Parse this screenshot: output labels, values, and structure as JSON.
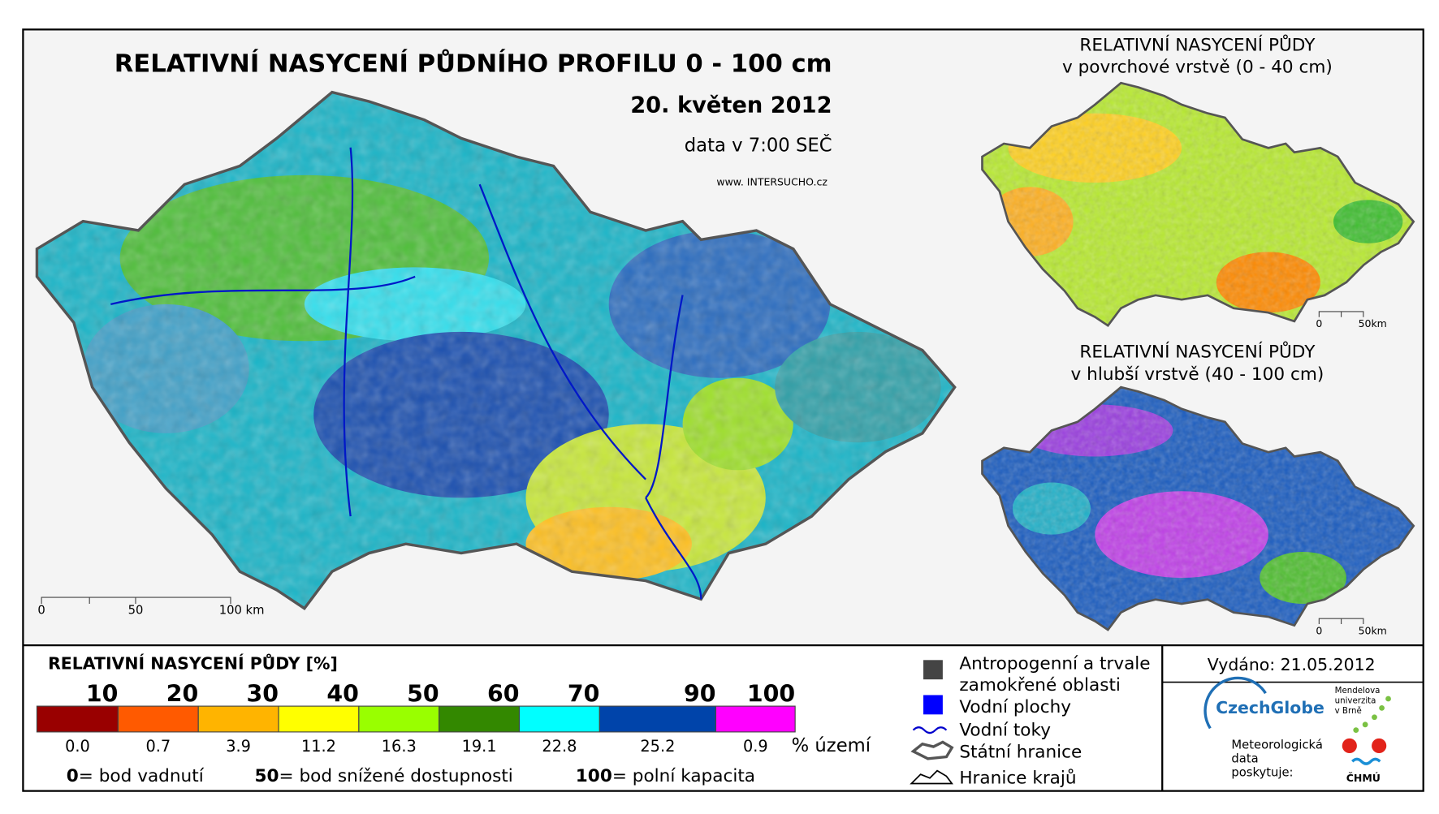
{
  "main_map": {
    "title": "RELATIVNÍ NASYCENÍ PŮDNÍHO PROFILU 0 - 100 cm",
    "date": "20. květen 2012",
    "time": "data v 7:00 SEČ",
    "website": "www. INTERSUCHO.cz",
    "scale_labels": [
      "0",
      "50",
      "100 km"
    ]
  },
  "inset_surface": {
    "title_lines": [
      "RELATIVNÍ NASYCENÍ PŮDY",
      "v povrchové vrstvě (0 - 40 cm)"
    ],
    "scale_labels": [
      "0",
      "50km"
    ]
  },
  "inset_deep": {
    "title_lines": [
      "RELATIVNÍ NASYCENÍ PŮDY",
      "v hlubší vrstvě (40 - 100 cm)"
    ],
    "scale_labels": [
      "0",
      "50km"
    ]
  },
  "legend": {
    "title": "RELATIVNÍ NASYCENÍ PŮDY [%]",
    "class_bounds": [
      10,
      20,
      30,
      40,
      50,
      60,
      70,
      90,
      100
    ],
    "classes": [
      {
        "color": "#990000",
        "share": "0.0"
      },
      {
        "color": "#ff5a00",
        "share": "0.7"
      },
      {
        "color": "#ffb400",
        "share": "3.9"
      },
      {
        "color": "#ffff00",
        "share": "11.2"
      },
      {
        "color": "#99ff00",
        "share": "16.3"
      },
      {
        "color": "#338800",
        "share": "19.1"
      },
      {
        "color": "#00ffff",
        "share": "22.8"
      },
      {
        "color": "#0044aa",
        "share": "25.2"
      },
      {
        "color": "#ff00ff",
        "share": "0.9"
      }
    ],
    "unit": "% území",
    "notes": [
      {
        "key": "0",
        "text": "= bod vadnutí"
      },
      {
        "key": "50",
        "text": "= bod snížené dostupnosti"
      },
      {
        "key": "100",
        "text": "= polní kapacita"
      }
    ]
  },
  "map_legend": {
    "anthropogenic": [
      "Antropogenní a trvale",
      "zamokřené oblasti"
    ],
    "water_bodies": "Vodní plochy",
    "rivers": "Vodní toky",
    "state_border": "Státní hranice",
    "region_border": "Hranice krajů"
  },
  "issued": "Vydáno: 21.05.2012",
  "logos": {
    "czechglobe": "CzechGlobe",
    "mendel": [
      "Mendelova",
      "univerzita",
      "v Brně"
    ],
    "provider": [
      "Meteorologická",
      "data",
      "poskytuje:"
    ],
    "chmu": "ČHMÚ"
  }
}
